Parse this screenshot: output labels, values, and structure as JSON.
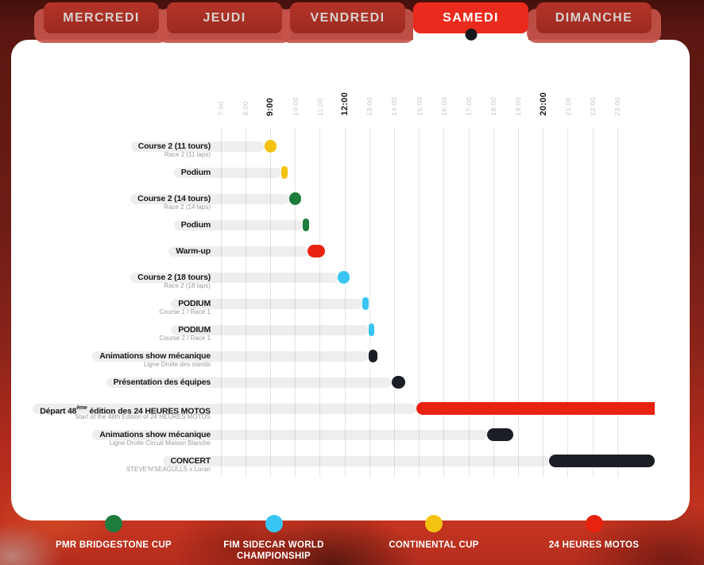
{
  "tabs": {
    "active": "SAMEDI",
    "items": [
      {
        "label": "MERCREDI"
      },
      {
        "label": "JEUDI"
      },
      {
        "label": "VENDREDI"
      },
      {
        "label": "SAMEDI"
      },
      {
        "label": "DIMANCHE"
      }
    ]
  },
  "chart_data": {
    "type": "gantt-timeline",
    "day": "SAMEDI",
    "axis": {
      "ticks": [
        "7:00",
        "8:00",
        "9:00",
        "10:00",
        "11:00",
        "12:00",
        "13:00",
        "14:00",
        "15:00",
        "16:00",
        "17:00",
        "18:00",
        "19:00",
        "20:00",
        "21:00",
        "22:00",
        "23:00"
      ],
      "bold_ticks": [
        "9:00",
        "12:00",
        "20:00"
      ],
      "start_hour": 7,
      "end_hour": 23,
      "bars_extend_to_hour": 24.5,
      "grid": true
    },
    "series": {
      "pmr": {
        "name": "PMR BRIDGESTONE CUP",
        "color": "#1e7c3d"
      },
      "sidecar": {
        "name": "FIM SIDECAR WORLD CHAMPIONSHIP",
        "color": "#38c5f4"
      },
      "continental": {
        "name": "CONTINENTAL CUP",
        "color": "#f4c211"
      },
      "motos": {
        "name": "24 HEURES MOTOS",
        "color": "#e8220f"
      },
      "general": {
        "name": "",
        "color": "#1b1f25"
      }
    },
    "rows": [
      {
        "label": "Course 2 (11 tours)",
        "sublabel": "Race 2 (11 laps)",
        "series": "continental",
        "start": 8.75,
        "end": 9.25
      },
      {
        "label": "Podium",
        "sublabel": "",
        "series": "continental",
        "start": 9.45,
        "end": 9.7
      },
      {
        "label": "Course 2 (14 tours)",
        "sublabel": "Race 2 (14 laps)",
        "series": "pmr",
        "start": 9.75,
        "end": 10.25
      },
      {
        "label": "Podium",
        "sublabel": "",
        "series": "pmr",
        "start": 10.3,
        "end": 10.55
      },
      {
        "label": "Warm-up",
        "sublabel": "",
        "series": "motos",
        "start": 10.5,
        "end": 11.2
      },
      {
        "label": "Course 2 (18 tours)",
        "sublabel": "Race 2 (18 laps)",
        "series": "sidecar",
        "start": 11.7,
        "end": 12.2
      },
      {
        "label": "PODIUM",
        "sublabel": "Course 1 / Race 1",
        "series": "sidecar",
        "start": 12.7,
        "end": 12.95
      },
      {
        "label": "PODIUM",
        "sublabel": "Course 2 / Race 1",
        "series": "sidecar",
        "start": 12.95,
        "end": 13.2
      },
      {
        "label": "Animations show mécanique",
        "sublabel": "Ligne Droite des stands",
        "series": "general",
        "start": 12.95,
        "end": 13.3
      },
      {
        "label": "Présentation des équipes",
        "sublabel": "",
        "series": "general",
        "start": 13.9,
        "end": 14.45
      },
      {
        "label": "Départ 48ème édition des 24 HEURES MOTOS",
        "sublabel": "Start of the 48th Edition of 24 HEURES MOTOS",
        "series": "motos",
        "start": 14.9,
        "end": 24.5,
        "clip_end": true
      },
      {
        "label": "Animations show mécanique",
        "sublabel": "Ligne Droite Circuit Maison Blanche",
        "series": "general",
        "start": 17.75,
        "end": 18.8
      },
      {
        "label": "CONCERT",
        "sublabel": "STEVE'N'SEAGULLS x Loran",
        "series": "general",
        "start": 20.25,
        "end": 24.5
      }
    ],
    "legend": [
      {
        "series": "pmr"
      },
      {
        "series": "sidecar"
      },
      {
        "series": "continental"
      },
      {
        "series": "motos"
      }
    ]
  },
  "colors": {
    "active_tab": "#ea2a1c",
    "inactive_tab": "#a82e24",
    "tab_lip": "#c5544a",
    "panel": "#ffffff",
    "text_dark": "#15181d",
    "text_sub": "#9a9a9a",
    "tick_gray": "#c4c4c4",
    "background_top": "#45100c",
    "background_bottom": "#c53420"
  }
}
